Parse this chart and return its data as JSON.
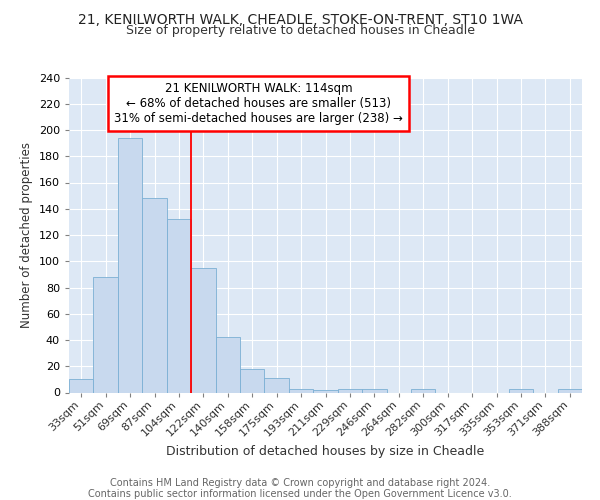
{
  "title1": "21, KENILWORTH WALK, CHEADLE, STOKE-ON-TRENT, ST10 1WA",
  "title2": "Size of property relative to detached houses in Cheadle",
  "xlabel": "Distribution of detached houses by size in Cheadle",
  "ylabel": "Number of detached properties",
  "categories": [
    "33sqm",
    "51sqm",
    "69sqm",
    "87sqm",
    "104sqm",
    "122sqm",
    "140sqm",
    "158sqm",
    "175sqm",
    "193sqm",
    "211sqm",
    "229sqm",
    "246sqm",
    "264sqm",
    "282sqm",
    "300sqm",
    "317sqm",
    "335sqm",
    "353sqm",
    "371sqm",
    "388sqm"
  ],
  "values": [
    10,
    88,
    194,
    148,
    132,
    95,
    42,
    18,
    11,
    3,
    2,
    3,
    3,
    0,
    3,
    0,
    0,
    0,
    3,
    0,
    3
  ],
  "bar_color": "#c8d9ee",
  "bar_edge_color": "#7bafd4",
  "red_line_x": 4.5,
  "annotation_line1": "21 KENILWORTH WALK: 114sqm",
  "annotation_line2": "← 68% of detached houses are smaller (513)",
  "annotation_line3": "31% of semi-detached houses are larger (238) →",
  "ylim": [
    0,
    240
  ],
  "yticks": [
    0,
    20,
    40,
    60,
    80,
    100,
    120,
    140,
    160,
    180,
    200,
    220,
    240
  ],
  "footer1": "Contains HM Land Registry data © Crown copyright and database right 2024.",
  "footer2": "Contains public sector information licensed under the Open Government Licence v3.0.",
  "bg_color": "#ffffff",
  "plot_bg_color": "#dde8f5"
}
